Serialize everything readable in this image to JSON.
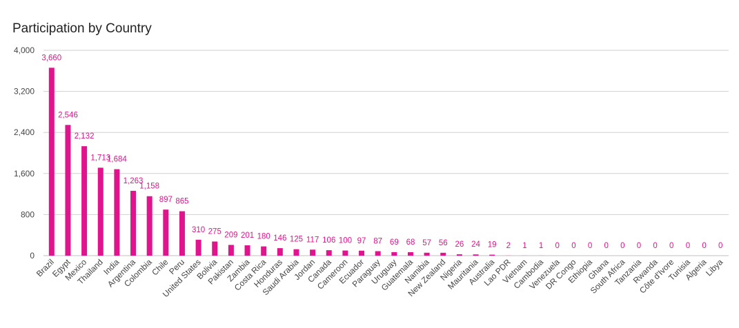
{
  "colors": {
    "bar": "#e0148c",
    "label": "#e0148c",
    "grid": "#d0d0d0",
    "axis": "#bfbfbf",
    "text": "#444444"
  },
  "chart_data": {
    "type": "bar",
    "title": "Participation by Country",
    "xlabel": "",
    "ylabel": "",
    "ylim": [
      0,
      4000
    ],
    "yticks": [
      0,
      800,
      1600,
      2400,
      3200,
      4000
    ],
    "ytick_labels": [
      "0",
      "800",
      "1,600",
      "2,400",
      "3,200",
      "4,000"
    ],
    "grid": true,
    "categories": [
      "Brazil",
      "Egypt",
      "Mexico",
      "Thailand",
      "India",
      "Argentina",
      "Colombia",
      "Chile",
      "Peru",
      "United States",
      "Bolivia",
      "Pakistan",
      "Zambia",
      "Costa Rica",
      "Honduras",
      "Saudi Arabia",
      "Jordan",
      "Canada",
      "Cameroon",
      "Ecuador",
      "Paraguay",
      "Uruguay",
      "Guatemala",
      "Namibia",
      "New Zealand",
      "Nigeria",
      "Mauritania",
      "Australia",
      "Lao PDR",
      "Vietnam",
      "Cambodia",
      "Venezuela",
      "DR Congo",
      "Ethiopia",
      "Ghana",
      "South Africa",
      "Tanzania",
      "Rwanda",
      "Côte d'Ivore",
      "Tunisia",
      "Algeria",
      "Libya"
    ],
    "values": [
      3660,
      2546,
      2132,
      1713,
      1684,
      1263,
      1158,
      897,
      865,
      310,
      275,
      209,
      201,
      180,
      146,
      125,
      117,
      106,
      100,
      97,
      87,
      69,
      68,
      57,
      56,
      26,
      24,
      19,
      2,
      1,
      1,
      0,
      0,
      0,
      0,
      0,
      0,
      0,
      0,
      0,
      0,
      0
    ],
    "value_labels": [
      "3,660",
      "2,546",
      "2,132",
      "1,713",
      "1,684",
      "1,263",
      "1,158",
      "897",
      "865",
      "310",
      "275",
      "209",
      "201",
      "180",
      "146",
      "125",
      "117",
      "106",
      "100",
      "97",
      "87",
      "69",
      "68",
      "57",
      "56",
      "26",
      "24",
      "19",
      "2",
      "1",
      "1",
      "0",
      "0",
      "0",
      "0",
      "0",
      "0",
      "0",
      "0",
      "0",
      "0",
      "0"
    ]
  }
}
